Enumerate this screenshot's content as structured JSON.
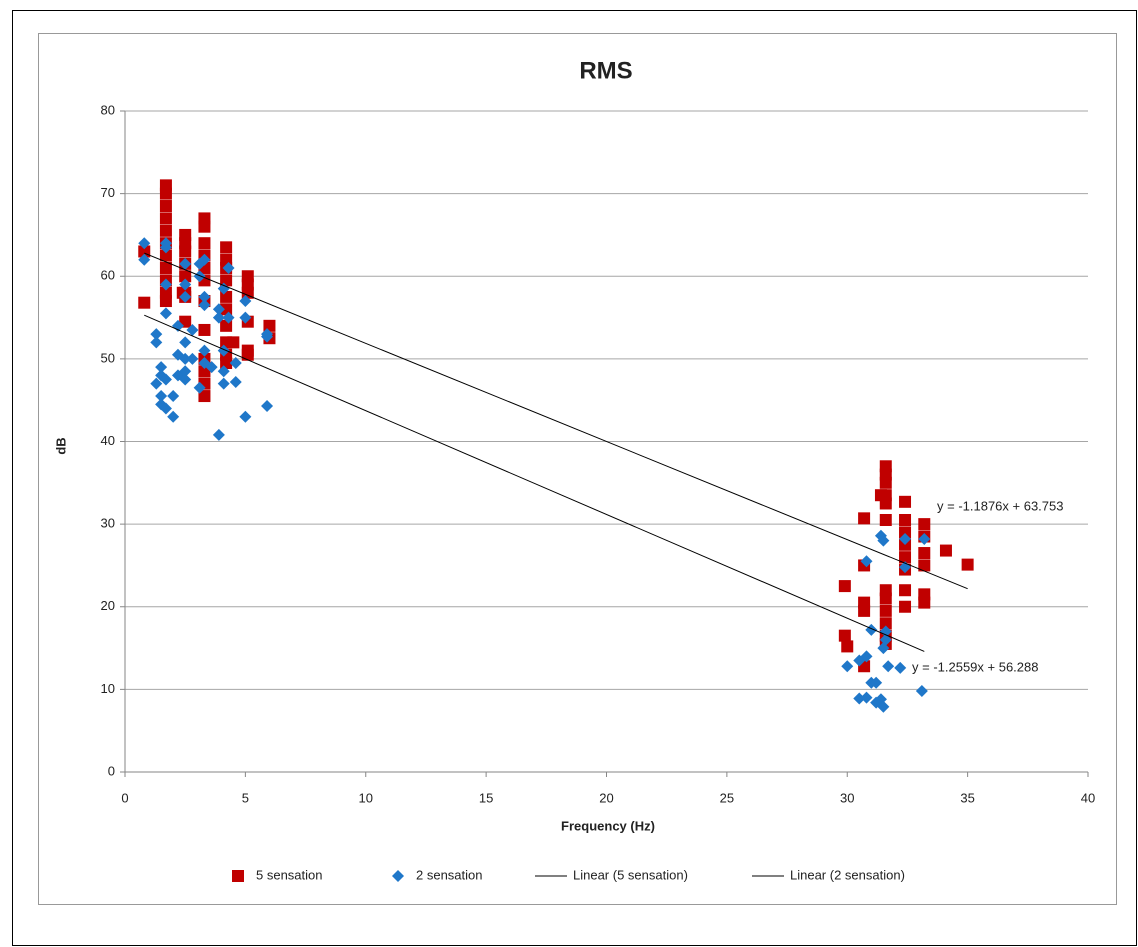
{
  "chart_data": {
    "type": "scatter",
    "title": "RMS",
    "x_label": "Frequency (Hz)",
    "y_label": "dB",
    "xlim": [
      0,
      40
    ],
    "xticks": [
      0,
      5,
      10,
      15,
      20,
      25,
      30,
      35,
      40
    ],
    "ylim": [
      0,
      80
    ],
    "yticks": [
      0,
      10,
      20,
      30,
      40,
      50,
      60,
      70,
      80
    ],
    "grid": true,
    "legend": "bottom",
    "series": [
      {
        "name": "5 sensation",
        "color": "#c00000",
        "marker": "square",
        "x": [
          0.8,
          0.8,
          1.7,
          1.7,
          1.7,
          1.7,
          1.7,
          1.7,
          1.7,
          1.7,
          1.7,
          1.7,
          1.7,
          2.5,
          2.5,
          2.5,
          2.5,
          2.5,
          2.5,
          2.5,
          2.5,
          2.4,
          3.3,
          3.3,
          3.3,
          3.3,
          3.3,
          3.3,
          3.3,
          3.3,
          3.3,
          3.3,
          3.3,
          3.3,
          4.2,
          4.2,
          4.2,
          4.2,
          4.2,
          4.2,
          4.2,
          4.2,
          4.2,
          4.2,
          4.5,
          5.1,
          5.1,
          5.1,
          5.1,
          5.1,
          5.1,
          6.0,
          6.0,
          29.9,
          29.9,
          30.0,
          30.7,
          30.7,
          30.7,
          30.7,
          30.7,
          31.6,
          31.6,
          31.6,
          31.6,
          31.6,
          31.6,
          31.6,
          31.6,
          31.6,
          31.6,
          31.6,
          31.6,
          31.4,
          32.4,
          32.4,
          32.4,
          32.4,
          32.4,
          32.4,
          32.4,
          32.4,
          33.2,
          33.2,
          33.2,
          33.2,
          33.2,
          33.2,
          34.1,
          35.0
        ],
        "values": [
          63,
          56.8,
          71,
          70,
          68.5,
          67,
          65.5,
          64,
          62.5,
          61,
          59.5,
          58,
          57,
          65,
          64,
          63,
          61.5,
          60,
          58,
          57.5,
          54.5,
          58,
          67,
          66,
          64,
          62.5,
          61,
          59.5,
          57,
          53.5,
          50,
          48.5,
          47,
          45.5,
          63.5,
          62,
          61,
          59.5,
          57.5,
          56,
          54,
          52,
          50.5,
          49.5,
          52,
          60,
          59,
          58,
          54.5,
          51,
          50.5,
          54,
          52.5,
          16.5,
          22.5,
          15.2,
          30.7,
          25,
          20.5,
          19.5,
          12.8,
          37,
          36,
          35,
          33.5,
          32.5,
          30.5,
          22,
          21,
          19.5,
          18,
          16.5,
          15.5,
          33.5,
          32.7,
          30.5,
          29,
          27.5,
          26,
          24.5,
          22,
          20,
          30,
          28.5,
          26.5,
          25,
          21.5,
          20.5,
          26.8,
          25.1
        ]
      },
      {
        "name": "2 sensation",
        "color": "#1f77c9",
        "marker": "diamond",
        "x": [
          0.8,
          0.8,
          1.3,
          1.3,
          1.3,
          1.5,
          1.5,
          1.5,
          1.5,
          1.7,
          1.7,
          1.7,
          1.7,
          1.7,
          1.7,
          2.0,
          2.0,
          2.2,
          2.2,
          2.2,
          2.5,
          2.5,
          2.5,
          2.5,
          2.5,
          2.5,
          2.5,
          2.8,
          2.8,
          3.1,
          3.1,
          3.1,
          3.3,
          3.3,
          3.3,
          3.3,
          3.3,
          3.6,
          3.9,
          3.9,
          3.9,
          4.1,
          4.1,
          4.1,
          4.1,
          4.3,
          4.3,
          4.6,
          4.6,
          5.0,
          5.0,
          5.0,
          5.9,
          5.9,
          5.9,
          30.0,
          30.5,
          30.5,
          30.8,
          30.8,
          30.8,
          31.0,
          31.0,
          31.2,
          31.2,
          31.4,
          31.4,
          31.5,
          31.5,
          31.5,
          31.6,
          31.6,
          31.7,
          32.2,
          32.4,
          32.4,
          33.1,
          33.2
        ],
        "values": [
          64,
          62,
          47,
          53,
          52,
          49,
          48,
          45.5,
          44.5,
          64,
          63.5,
          59,
          55.5,
          44,
          47.5,
          45.5,
          43,
          50.5,
          48,
          54,
          61.5,
          59,
          57.5,
          52,
          50,
          48.5,
          47.5,
          53.5,
          50,
          61.5,
          60,
          46.5,
          62,
          57.5,
          56.5,
          51,
          49.5,
          49,
          40.8,
          56,
          55,
          58.5,
          51,
          48.5,
          47,
          61,
          55,
          47.2,
          49.5,
          57,
          55,
          43,
          52.7,
          53,
          44.3,
          12.8,
          8.9,
          13.5,
          25.5,
          14,
          9,
          17.2,
          10.8,
          8.4,
          10.8,
          8.8,
          28.6,
          7.9,
          15,
          28,
          17,
          16,
          12.8,
          12.6,
          28.2,
          24.8,
          9.8,
          28.2
        ]
      }
    ],
    "trendlines": [
      {
        "name": "Linear (5 sensation)",
        "color": "#000000",
        "slope": -1.1876,
        "intercept": 63.753,
        "x": [
          0.8,
          35
        ],
        "label": "y = -1.1876x + 63.753"
      },
      {
        "name": "Linear (2 sensation)",
        "color": "#000000",
        "slope": -1.2559,
        "intercept": 56.288,
        "x": [
          0.8,
          33.2
        ],
        "label": "y = -1.2559x + 56.288"
      }
    ]
  }
}
